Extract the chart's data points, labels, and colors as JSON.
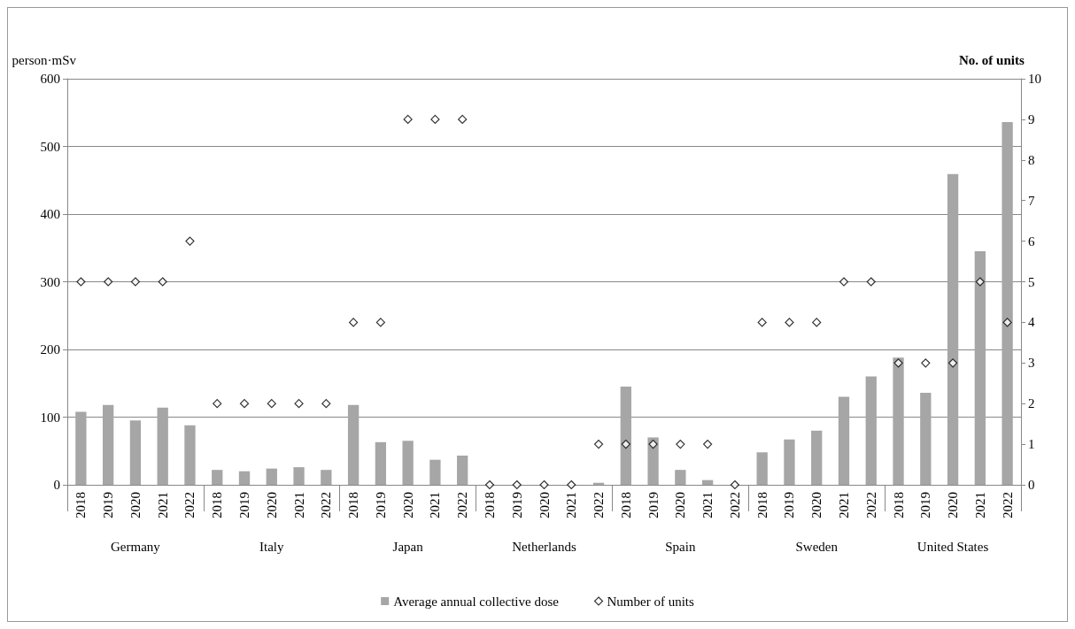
{
  "chart_data": {
    "type": "bar",
    "categories": [
      "2018",
      "2019",
      "2020",
      "2021",
      "2022",
      "2018",
      "2019",
      "2020",
      "2021",
      "2022",
      "2018",
      "2019",
      "2020",
      "2021",
      "2022",
      "2018",
      "2019",
      "2020",
      "2021",
      "2022",
      "2018",
      "2019",
      "2020",
      "2021",
      "2022",
      "2018",
      "2019",
      "2020",
      "2021",
      "2022",
      "2018",
      "2019",
      "2020",
      "2021",
      "2022"
    ],
    "annotations": [
      "Germany",
      "Italy",
      "Japan",
      "Netherlands",
      "Spain",
      "Sweden",
      "United States"
    ],
    "ylabel": "person·mSv",
    "y2label": "No. of units",
    "ylim": [
      0,
      600
    ],
    "yticks": [
      0,
      100,
      200,
      300,
      400,
      500,
      600
    ],
    "y2lim": [
      0,
      10
    ],
    "y2ticks": [
      0,
      1,
      2,
      3,
      4,
      5,
      6,
      7,
      8,
      9,
      10
    ],
    "grid": "y",
    "legend": "bottom",
    "series": [
      {
        "name": "Average annual collective dose",
        "color": "#a6a6a6",
        "values": [
          108,
          118,
          95,
          114,
          88,
          22,
          20,
          24,
          26,
          22,
          118,
          63,
          65,
          37,
          43,
          0,
          0,
          0,
          0,
          3,
          145,
          70,
          22,
          7,
          0,
          48,
          67,
          80,
          130,
          160,
          188,
          136,
          459,
          345,
          536
        ]
      },
      {
        "name": "Number of units",
        "type": "scatter",
        "axis": "y2",
        "marker": "diamond",
        "color": "#000000",
        "values": [
          5,
          5,
          5,
          5,
          6,
          2,
          2,
          2,
          2,
          2,
          4,
          4,
          9,
          9,
          9,
          0,
          0,
          0,
          0,
          1,
          1,
          1,
          1,
          1,
          0,
          4,
          4,
          4,
          5,
          5,
          3,
          3,
          3,
          5,
          4
        ]
      }
    ]
  }
}
